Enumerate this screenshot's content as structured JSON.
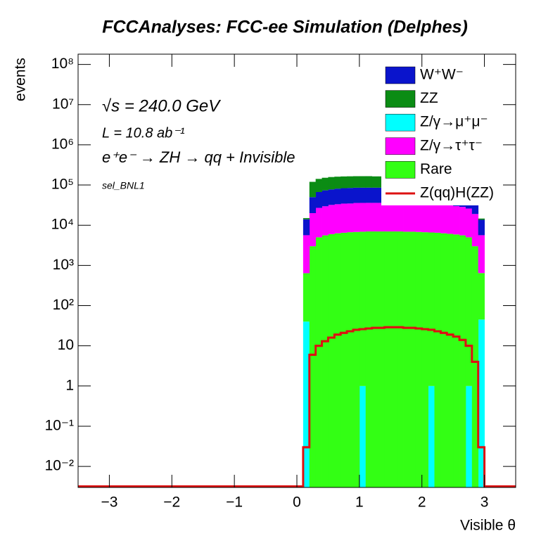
{
  "chart_data": {
    "type": "histogram",
    "title": "FCCAnalyses: FCC-ee Simulation (Delphes)",
    "x_label": "Visible θ",
    "y_label": "events",
    "annotations": [
      "√s = 240.0 GeV",
      "L = 10.8 ab⁻¹",
      "e⁺e⁻ → ZH → qq + Invisible",
      "sel_BNL1"
    ],
    "bins": [
      0.1,
      0.2,
      0.3,
      0.4,
      0.5,
      0.6,
      0.7,
      0.8,
      0.9,
      1.0,
      1.1,
      1.2,
      1.3,
      1.4,
      1.5,
      1.6,
      1.7,
      1.8,
      1.9,
      2.0,
      2.1,
      2.2,
      2.3,
      2.4,
      2.5,
      2.6,
      2.7,
      2.8,
      2.9,
      3.0
    ],
    "log_y": true,
    "legend": "upper right",
    "stack_order": [
      2,
      4,
      3,
      0,
      1
    ],
    "series": [
      {
        "name": "W⁺W⁻",
        "color": "#0a14cc",
        "values": [
          8400,
          30000,
          40000,
          44000,
          46000,
          48000,
          49000,
          50000,
          50000,
          50000,
          50000,
          50000,
          50000,
          50000,
          50000,
          50000,
          50000,
          49000,
          49000,
          48000,
          48000,
          47000,
          46000,
          45000,
          43000,
          41000,
          38000,
          30000,
          8000
        ]
      },
      {
        "name": "ZZ",
        "color": "#0b8c14",
        "values": [
          1000,
          70000,
          75000,
          78000,
          80000,
          80000,
          80000,
          80000,
          80000,
          80000,
          80000,
          78000,
          78000,
          76000,
          75000,
          74000,
          72000,
          70000,
          68000,
          66000,
          64000,
          62000,
          60000,
          58000,
          56000,
          54000,
          50000,
          40000,
          1000
        ]
      },
      {
        "name": "Z/γ→μ⁺μ⁻",
        "color": "#00ffff",
        "values": [
          40,
          0,
          0,
          0,
          0,
          0,
          0,
          0,
          0,
          1,
          0,
          0,
          0,
          0,
          0,
          0,
          0,
          0,
          0,
          0,
          1,
          0,
          0,
          0,
          0,
          0,
          1,
          0,
          45
        ]
      },
      {
        "name": "Z/γ→τ⁺τ⁻",
        "color": "#ff00ff",
        "values": [
          5000,
          17000,
          22000,
          24000,
          26000,
          27000,
          28000,
          28000,
          29000,
          29000,
          29000,
          29000,
          29000,
          29000,
          29000,
          29000,
          29000,
          28000,
          28000,
          28000,
          27000,
          27000,
          26000,
          25000,
          24000,
          23000,
          21000,
          16000,
          5000
        ]
      },
      {
        "name": "Rare",
        "color": "#33ff14",
        "values": [
          600,
          3000,
          5000,
          5600,
          6000,
          6300,
          6500,
          6700,
          6800,
          6900,
          7000,
          7000,
          7000,
          7000,
          7000,
          7000,
          6900,
          6900,
          6800,
          6700,
          6600,
          6500,
          6300,
          6100,
          5900,
          5600,
          5000,
          3000,
          600
        ]
      },
      {
        "name": "Z(qq)H(ZZ)",
        "color": "#dd1111",
        "draw": "line",
        "values": [
          0.03,
          6,
          10,
          13,
          16,
          19,
          21,
          23,
          25,
          26,
          27,
          28,
          28,
          29,
          29,
          29,
          28,
          28,
          27,
          26,
          25,
          23,
          21,
          19,
          17,
          14,
          10,
          4,
          0.03
        ]
      }
    ],
    "xlim": [
      -3.5,
      3.5
    ],
    "xticks": [
      {
        "value": -3,
        "label": "−3"
      },
      {
        "value": -2,
        "label": "−2"
      },
      {
        "value": -1,
        "label": "−1"
      },
      0,
      1,
      2,
      3
    ],
    "ylim": [
      0.003,
      180000000
    ],
    "yticks": [
      {
        "value": 0.01,
        "label": "10⁻²"
      },
      {
        "value": 0.1,
        "label": "10⁻¹"
      },
      1,
      10,
      {
        "value": 100,
        "label": "10²"
      },
      {
        "value": 1000,
        "label": "10³"
      },
      {
        "value": 10000,
        "label": "10⁴"
      },
      {
        "value": 100000,
        "label": "10⁵"
      },
      {
        "value": 1000000,
        "label": "10⁶"
      },
      {
        "value": 10000000,
        "label": "10⁷"
      },
      {
        "value": 100000000,
        "label": "10⁸"
      }
    ]
  }
}
